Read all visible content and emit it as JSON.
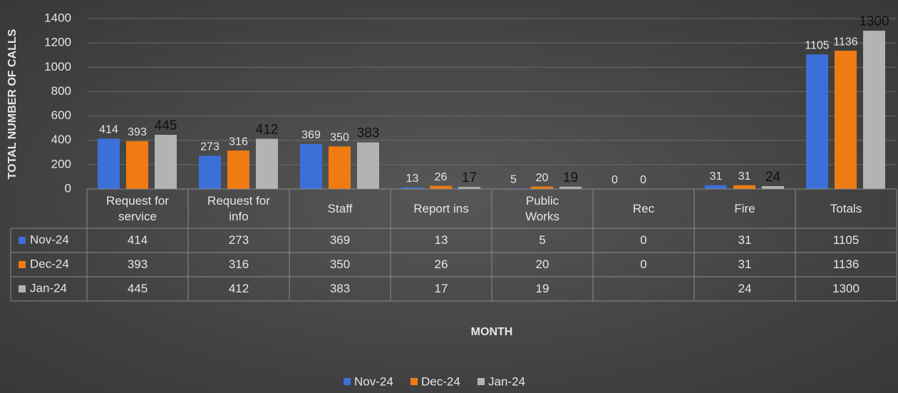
{
  "chart_data": {
    "type": "bar",
    "y_label": "TOTAL NUMBER OF CALLS",
    "x_label": "MONTH",
    "categories": [
      "Request for service",
      "Request for info",
      "Staff",
      "Report ins",
      "Public Works",
      "Rec",
      "Fire",
      "Totals"
    ],
    "series": [
      {
        "name": "Nov-24",
        "color": "#3b70d9",
        "values": [
          414,
          273,
          369,
          13,
          5,
          0,
          31,
          1105
        ]
      },
      {
        "name": "Dec-24",
        "color": "#f07b12",
        "values": [
          393,
          316,
          350,
          26,
          20,
          0,
          31,
          1136
        ]
      },
      {
        "name": "Jan-24",
        "color": "#b3b3b3",
        "values": [
          445,
          412,
          383,
          17,
          19,
          null,
          24,
          1300
        ]
      }
    ],
    "ylim": [
      0,
      1400
    ],
    "yticks": [
      0,
      200,
      400,
      600,
      800,
      1000,
      1200,
      1400
    ],
    "grid": true,
    "legend": "bottom",
    "data_table": true
  }
}
